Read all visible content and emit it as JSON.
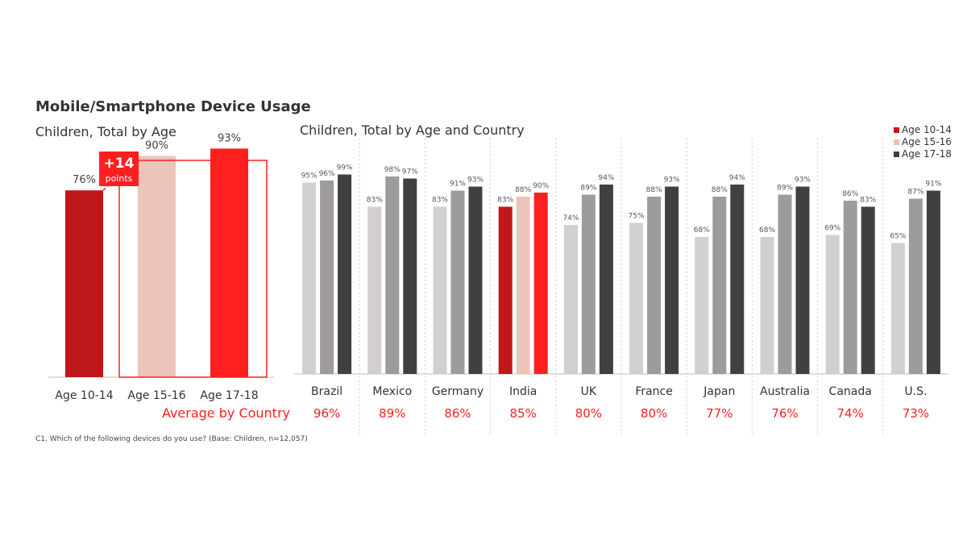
{
  "title": "Mobile/Smartphone Device Usage",
  "footnote": "C1. Which of the following devices do you use? (Base: Children, n=12,057)",
  "legend": [
    {
      "label": "Age 10-14",
      "color": "#c0171a"
    },
    {
      "label": "Age 15-16",
      "color": "#e8c4bb"
    },
    {
      "label": "Age 17-18",
      "color": "#404040"
    }
  ],
  "average_label": "Average by Country",
  "callout": {
    "big": "+14",
    "small": "points"
  },
  "colors": {
    "age1014": "#c0171a",
    "age1516": "#ecc4ba",
    "age1718": "#ff1f1f",
    "country_light": "#d2cfcf",
    "country_mid": "#9e9b9b",
    "country_dark": "#404040",
    "accent": "#ff1f1f"
  },
  "chart_data": [
    {
      "type": "bar",
      "title": "Children, Total by Age",
      "categories": [
        "Age 10-14",
        "Age 15-16",
        "Age 17-18"
      ],
      "values": [
        76,
        90,
        93
      ],
      "labels": [
        "76%",
        "90%",
        "93%"
      ],
      "ylim": [
        0,
        100
      ]
    },
    {
      "type": "bar",
      "title": "Children, Total by Age and Country",
      "categories": [
        "Brazil",
        "Mexico",
        "Germany",
        "India",
        "UK",
        "France",
        "Japan",
        "Australia",
        "Canada",
        "U.S."
      ],
      "series": [
        {
          "name": "Age 10-14",
          "values": [
            95,
            83,
            83,
            83,
            74,
            75,
            68,
            68,
            69,
            65
          ]
        },
        {
          "name": "Age 15-16",
          "values": [
            96,
            98,
            91,
            88,
            89,
            88,
            88,
            89,
            86,
            87
          ]
        },
        {
          "name": "Age 17-18",
          "values": [
            99,
            97,
            93,
            90,
            94,
            93,
            94,
            93,
            83,
            91
          ]
        }
      ],
      "averages": [
        "96%",
        "89%",
        "86%",
        "85%",
        "80%",
        "80%",
        "77%",
        "76%",
        "74%",
        "73%"
      ],
      "highlight": "India",
      "ylim": [
        0,
        100
      ]
    }
  ]
}
